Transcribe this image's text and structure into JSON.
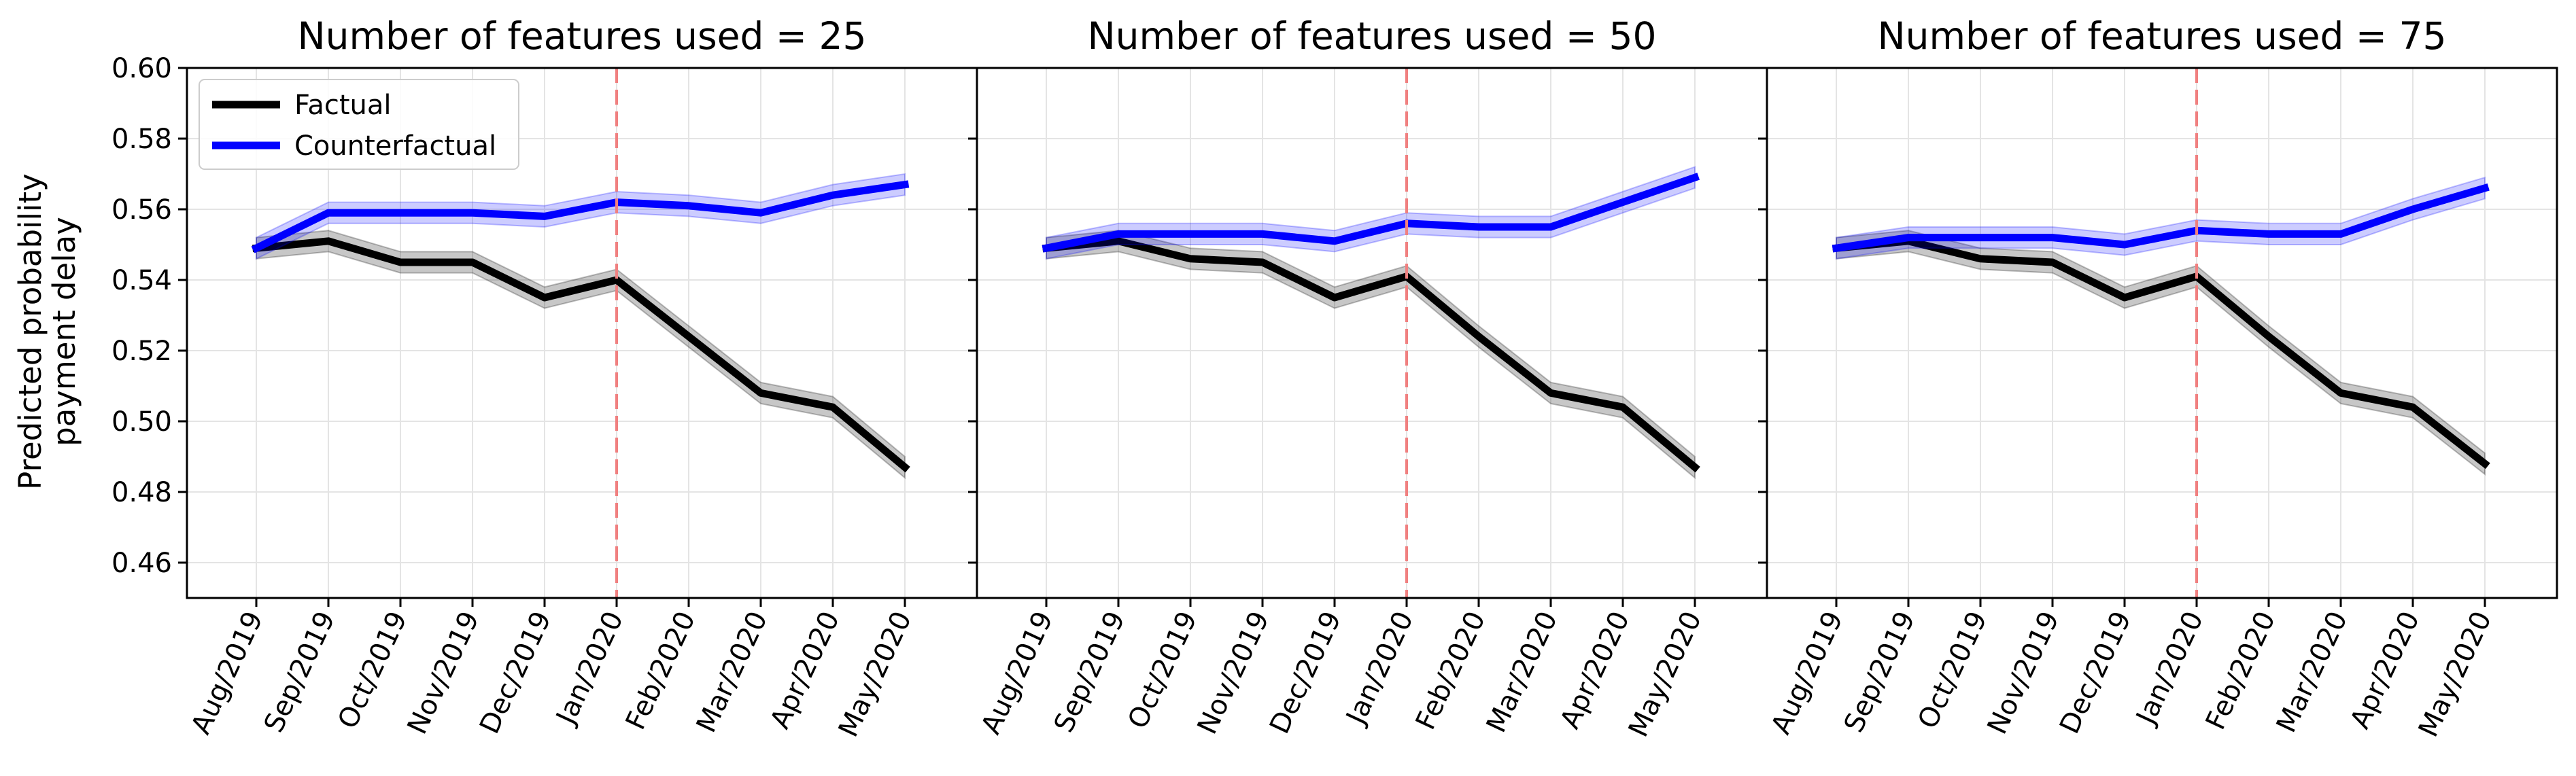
{
  "figure": {
    "ylabel_lines": [
      "Predicted probability",
      "payment delay"
    ],
    "colors": {
      "factual": "#000000",
      "counterfactual": "#0000ff",
      "intervention": "#f08080",
      "grid": "#e4e4e4"
    }
  },
  "legend": {
    "placement": "upper-left of first panel",
    "entries": [
      "Factual",
      "Counterfactual"
    ]
  },
  "chart_data": [
    {
      "type": "line",
      "title": "Number of features used = 25",
      "categories": [
        "Aug/2019",
        "Sep/2019",
        "Oct/2019",
        "Nov/2019",
        "Dec/2019",
        "Jan/2020",
        "Feb/2020",
        "Mar/2020",
        "Apr/2020",
        "May/2020"
      ],
      "ylim": [
        0.45,
        0.6
      ],
      "yticks": [
        "0.46",
        "0.48",
        "0.50",
        "0.52",
        "0.54",
        "0.56",
        "0.58",
        "0.60"
      ],
      "grid": true,
      "intervention_category": "Jan/2020",
      "series": [
        {
          "name": "Factual",
          "values": [
            0.549,
            0.551,
            0.545,
            0.545,
            0.535,
            0.54,
            0.524,
            0.508,
            0.504,
            0.487
          ],
          "band": 0.003
        },
        {
          "name": "Counterfactual",
          "values": [
            0.549,
            0.559,
            0.559,
            0.559,
            0.558,
            0.562,
            0.561,
            0.559,
            0.564,
            0.567
          ],
          "band": 0.003
        }
      ]
    },
    {
      "type": "line",
      "title": "Number of features used = 50",
      "categories": [
        "Aug/2019",
        "Sep/2019",
        "Oct/2019",
        "Nov/2019",
        "Dec/2019",
        "Jan/2020",
        "Feb/2020",
        "Mar/2020",
        "Apr/2020",
        "May/2020"
      ],
      "ylim": [
        0.45,
        0.6
      ],
      "yticks": [
        "0.46",
        "0.48",
        "0.50",
        "0.52",
        "0.54",
        "0.56",
        "0.58",
        "0.60"
      ],
      "grid": true,
      "intervention_category": "Jan/2020",
      "series": [
        {
          "name": "Factual",
          "values": [
            0.549,
            0.551,
            0.546,
            0.545,
            0.535,
            0.541,
            0.524,
            0.508,
            0.504,
            0.487
          ],
          "band": 0.003
        },
        {
          "name": "Counterfactual",
          "values": [
            0.549,
            0.553,
            0.553,
            0.553,
            0.551,
            0.556,
            0.555,
            0.555,
            0.562,
            0.569
          ],
          "band": 0.003
        }
      ]
    },
    {
      "type": "line",
      "title": "Number of features used = 75",
      "categories": [
        "Aug/2019",
        "Sep/2019",
        "Oct/2019",
        "Nov/2019",
        "Dec/2019",
        "Jan/2020",
        "Feb/2020",
        "Mar/2020",
        "Apr/2020",
        "May/2020"
      ],
      "ylim": [
        0.45,
        0.6
      ],
      "yticks": [
        "0.46",
        "0.48",
        "0.50",
        "0.52",
        "0.54",
        "0.56",
        "0.58",
        "0.60"
      ],
      "grid": true,
      "intervention_category": "Jan/2020",
      "series": [
        {
          "name": "Factual",
          "values": [
            0.549,
            0.551,
            0.546,
            0.545,
            0.535,
            0.541,
            0.524,
            0.508,
            0.504,
            0.488
          ],
          "band": 0.003
        },
        {
          "name": "Counterfactual",
          "values": [
            0.549,
            0.552,
            0.552,
            0.552,
            0.55,
            0.554,
            0.553,
            0.553,
            0.56,
            0.566
          ],
          "band": 0.003
        }
      ]
    }
  ]
}
